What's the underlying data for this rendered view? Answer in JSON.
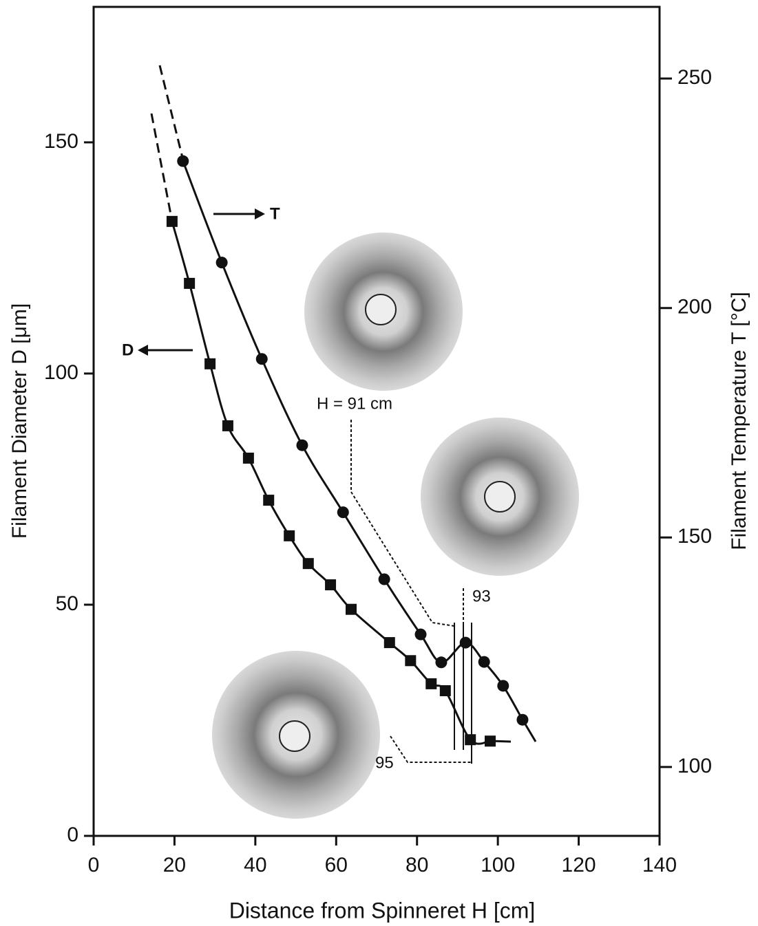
{
  "chart_data": {
    "type": "line",
    "x_label": "Distance from Spinneret  H [cm]",
    "y_label": "Filament Diameter  D [μm]",
    "y2_label": "Filament Temperature  T [°C]",
    "xlim": [
      0,
      140
    ],
    "xticks": [
      0,
      20,
      40,
      60,
      80,
      100,
      120,
      140
    ],
    "ylim": [
      0,
      179.3
    ],
    "yticks": [
      0,
      50,
      100,
      150
    ],
    "y2lim": [
      85,
      265.6
    ],
    "y2ticks": [
      100,
      150,
      200,
      250
    ],
    "series": [
      {
        "name": "D",
        "marker": "square",
        "color": "#111111",
        "x": [
          19.4,
          23.7,
          28.8,
          33.2,
          38.3,
          43.3,
          48.4,
          53.1,
          58.6,
          63.7,
          73.2,
          78.4,
          83.5,
          87.0,
          93.2,
          98.1
        ],
        "values": [
          132.9,
          119.5,
          102.1,
          88.7,
          81.7,
          72.6,
          64.9,
          58.9,
          54.3,
          49.0,
          41.8,
          37.9,
          32.9,
          31.4,
          20.8,
          20.5
        ]
      },
      {
        "name": "T",
        "marker": "circle",
        "color": "#111111",
        "axis": "y2",
        "x": [
          22.1,
          31.7,
          41.6,
          51.6,
          61.7,
          71.9,
          80.9,
          86.0,
          92.0,
          96.6,
          101.3,
          106.1
        ],
        "values": [
          232.0,
          209.9,
          188.9,
          170.1,
          155.5,
          140.9,
          128.9,
          122.8,
          127.1,
          122.9,
          117.7,
          110.3
        ]
      }
    ],
    "annotations": [
      "H = 91 cm",
      "93",
      "95"
    ]
  }
}
